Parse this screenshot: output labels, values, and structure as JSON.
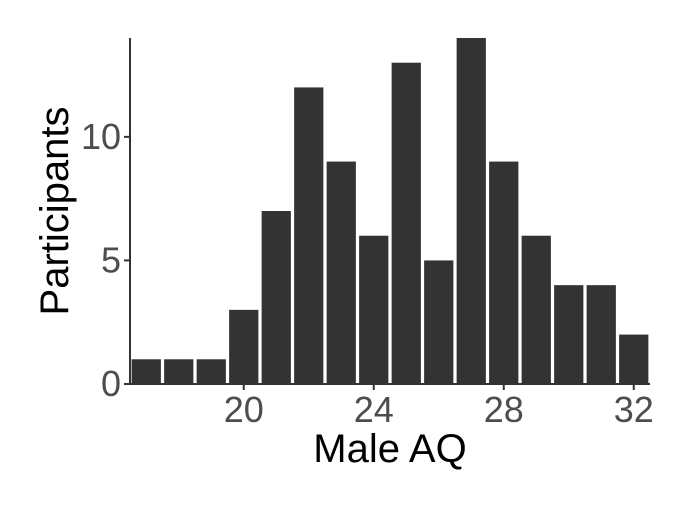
{
  "chart_data": {
    "type": "bar",
    "title": "",
    "xlabel": "Male AQ",
    "ylabel": "Participants",
    "x": [
      17,
      18,
      19,
      20,
      21,
      22,
      23,
      24,
      25,
      26,
      27,
      28,
      29,
      30,
      31,
      32
    ],
    "values": [
      1,
      1,
      1,
      3,
      7,
      12,
      9,
      6,
      13,
      5,
      14,
      9,
      6,
      4,
      4,
      2
    ],
    "xlim": [
      16.5,
      32.5
    ],
    "ylim": [
      0,
      14
    ],
    "xticks": [
      20,
      24,
      28,
      32
    ],
    "yticks": [
      0,
      5,
      10
    ],
    "grid": false,
    "bar_color": "#333333",
    "axis_color": "#333333",
    "tick_label_color": "#4d4d4d"
  }
}
